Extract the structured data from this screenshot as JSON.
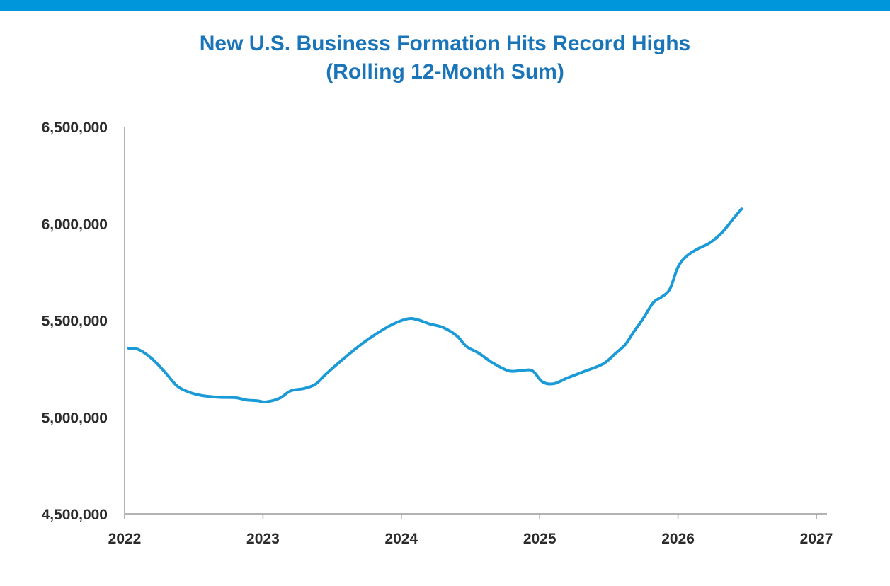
{
  "chart_data": {
    "type": "line",
    "title": "New U.S. Business Formation Hits Record Highs",
    "subtitle": "(Rolling 12-Month Sum)",
    "xlabel": "",
    "ylabel": "",
    "xlim": [
      2022,
      2027
    ],
    "ylim": [
      4500000,
      6500000
    ],
    "x_ticks": [
      "2022",
      "2023",
      "2024",
      "2025",
      "2026",
      "2027"
    ],
    "y_ticks": [
      "6,500,000",
      "6,000,000",
      "5,500,000",
      "5,000,000",
      "4,500,000"
    ],
    "grid": false,
    "legend": "none",
    "line_color": "#1a9ad6",
    "series": [
      {
        "x": [
          2022.03,
          2022.1,
          2022.2,
          2022.3,
          2022.38,
          2022.46,
          2022.55,
          2022.68,
          2022.8,
          2022.88,
          2022.96,
          2023.02,
          2023.12,
          2023.2,
          2023.3,
          2023.38,
          2023.46,
          2023.58,
          2023.7,
          2023.82,
          2023.94,
          2024.05,
          2024.12,
          2024.2,
          2024.3,
          2024.4,
          2024.47,
          2024.56,
          2024.66,
          2024.78,
          2024.88,
          2024.95,
          2025.02,
          2025.1,
          2025.2,
          2025.32,
          2025.46,
          2025.55,
          2025.62,
          2025.68,
          2025.74,
          2025.82,
          2025.88,
          2025.94,
          2026.0,
          2026.06,
          2026.14,
          2026.23,
          2026.32,
          2026.4,
          2026.46
        ],
        "y": [
          5355000,
          5349000,
          5300000,
          5225000,
          5160000,
          5130000,
          5112000,
          5102000,
          5100000,
          5088000,
          5084000,
          5078000,
          5097000,
          5135000,
          5148000,
          5170000,
          5225000,
          5300000,
          5370000,
          5430000,
          5480000,
          5508000,
          5502000,
          5482000,
          5463000,
          5420000,
          5365000,
          5330000,
          5280000,
          5238000,
          5242000,
          5238000,
          5182000,
          5172000,
          5202000,
          5235000,
          5275000,
          5330000,
          5375000,
          5440000,
          5500000,
          5590000,
          5620000,
          5660000,
          5775000,
          5830000,
          5868000,
          5900000,
          5955000,
          6025000,
          6075000
        ]
      }
    ]
  }
}
